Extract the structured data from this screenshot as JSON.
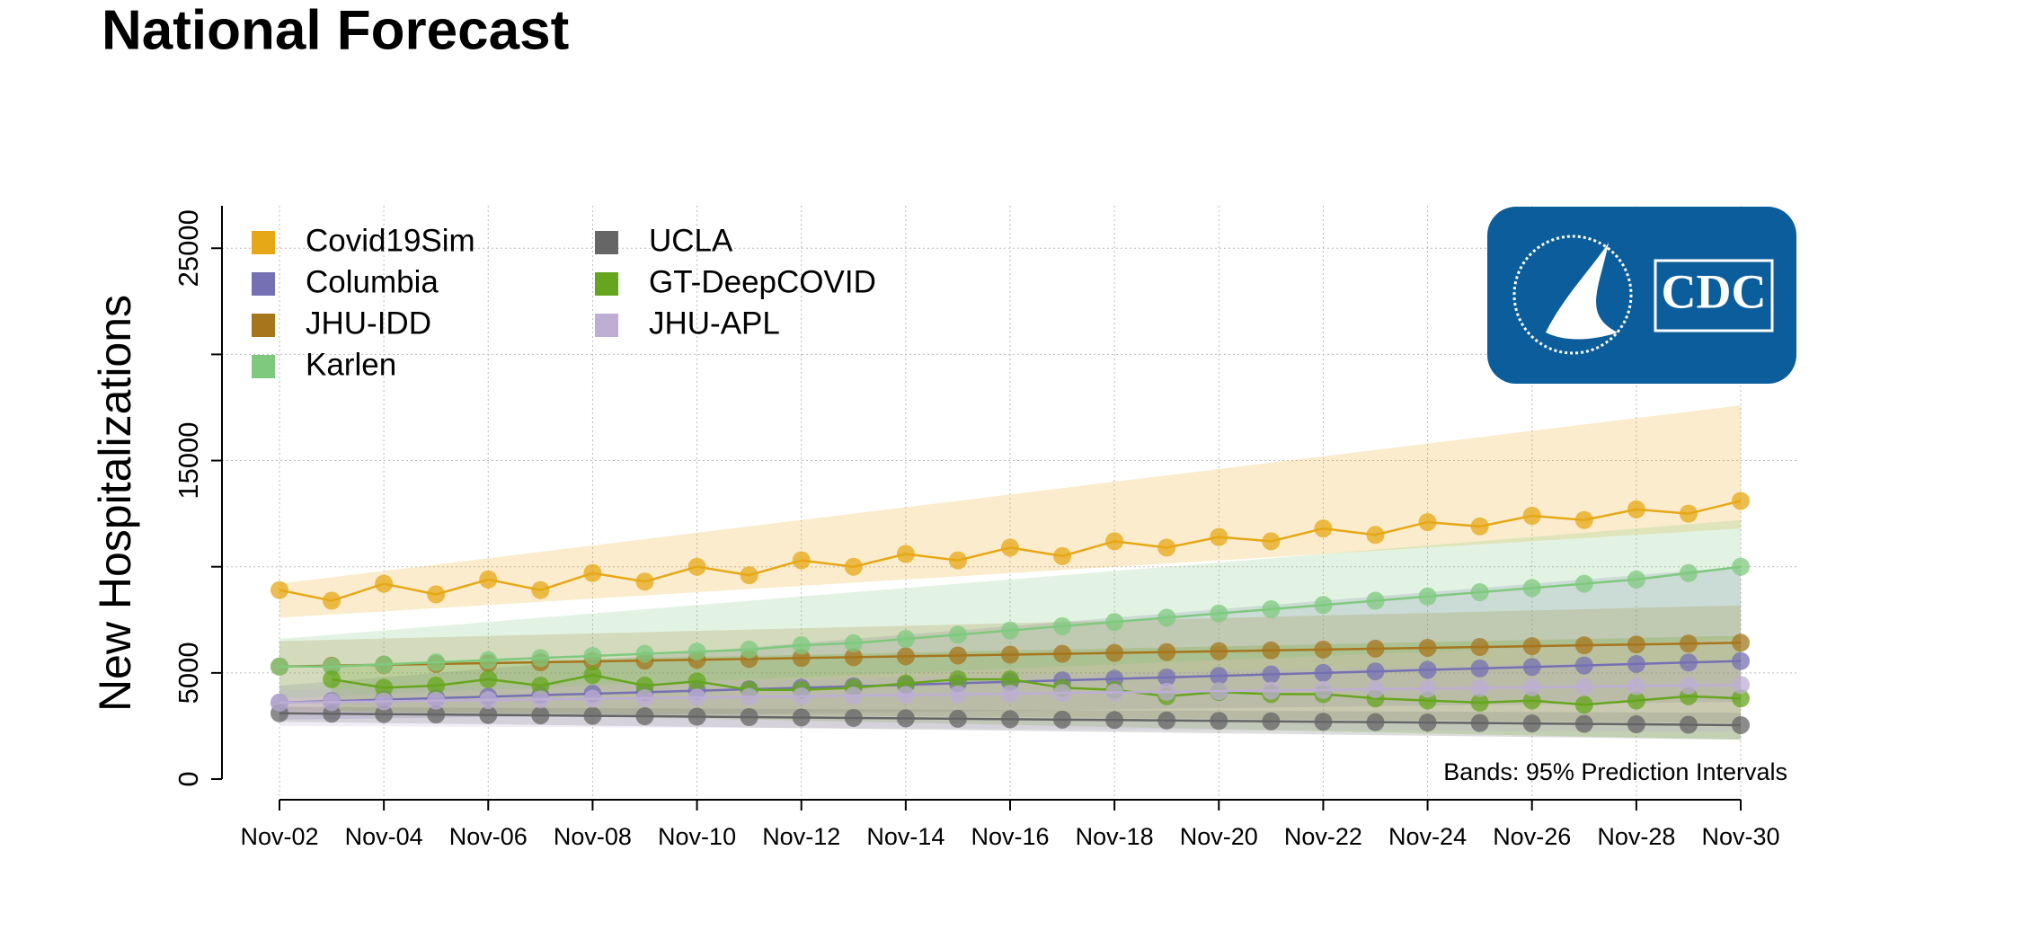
{
  "chart_data": {
    "type": "line",
    "title": "National Forecast",
    "y_label": "New Hospitalizations",
    "annotation": "Bands: 95% Prediction Intervals",
    "logo": "CDC",
    "categories": [
      "Nov-02",
      null,
      "Nov-04",
      null,
      "Nov-06",
      null,
      "Nov-08",
      null,
      "Nov-10",
      null,
      "Nov-12",
      null,
      "Nov-14",
      null,
      "Nov-16",
      null,
      "Nov-18",
      null,
      "Nov-20",
      null,
      "Nov-22",
      null,
      "Nov-24",
      null,
      "Nov-26",
      null,
      "Nov-28",
      null,
      "Nov-30"
    ],
    "ylim": [
      0,
      27000
    ],
    "yticks": [
      0,
      5000,
      15000,
      25000
    ],
    "yminor": [
      10000,
      20000
    ],
    "grid": true,
    "series": [
      {
        "name": "Covid19Sim",
        "color": "#E6A817",
        "values": [
          8900,
          8400,
          9200,
          8700,
          9400,
          8900,
          9700,
          9300,
          10000,
          9600,
          10300,
          10000,
          10600,
          10300,
          10900,
          10500,
          11200,
          10900,
          11400,
          11200,
          11800,
          11500,
          12100,
          11900,
          12400,
          12200,
          12700,
          12500,
          13100
        ],
        "lower": [
          7600,
          7750,
          7900,
          8050,
          8200,
          8350,
          8500,
          8650,
          8800,
          8950,
          9100,
          9250,
          9400,
          9550,
          9700,
          9850,
          10000,
          10150,
          10300,
          10450,
          10600,
          10750,
          10900,
          11050,
          11200,
          11350,
          11500,
          11650,
          11800
        ],
        "upper": [
          9200,
          9500,
          9800,
          10100,
          10400,
          10700,
          11000,
          11300,
          11600,
          11900,
          12200,
          12500,
          12800,
          13100,
          13400,
          13700,
          14000,
          14300,
          14600,
          14900,
          15200,
          15500,
          15800,
          16100,
          16400,
          16700,
          17000,
          17300,
          17600
        ]
      },
      {
        "name": "Columbia",
        "color": "#7570B3",
        "values": [
          3600,
          3670,
          3740,
          3810,
          3880,
          3950,
          4020,
          4090,
          4160,
          4230,
          4300,
          4370,
          4440,
          4510,
          4580,
          4650,
          4720,
          4790,
          4860,
          4930,
          5000,
          5070,
          5140,
          5210,
          5280,
          5350,
          5420,
          5490,
          5560
        ],
        "lower": [
          2800,
          2830,
          2860,
          2890,
          2920,
          2950,
          2980,
          3010,
          3040,
          3070,
          3100,
          3130,
          3160,
          3190,
          3220,
          3250,
          3280,
          3310,
          3340,
          3370,
          3400,
          3430,
          3460,
          3490,
          3520,
          3550,
          3580,
          3610,
          3640
        ],
        "upper": [
          4400,
          4600,
          4800,
          5000,
          5200,
          5400,
          5600,
          5800,
          6000,
          6200,
          6400,
          6600,
          6800,
          7000,
          7200,
          7400,
          7600,
          7800,
          8000,
          8200,
          8400,
          8600,
          8800,
          9000,
          9200,
          9400,
          9600,
          9800,
          10000
        ]
      },
      {
        "name": "JHU-IDD",
        "color": "#A6761D",
        "values": [
          5300,
          5340,
          5380,
          5420,
          5460,
          5500,
          5540,
          5580,
          5620,
          5660,
          5700,
          5740,
          5780,
          5820,
          5860,
          5900,
          5940,
          5980,
          6020,
          6060,
          6100,
          6140,
          6180,
          6220,
          6260,
          6300,
          6340,
          6380,
          6420
        ],
        "lower": [
          3200,
          3180,
          3160,
          3140,
          3120,
          3100,
          3080,
          3060,
          3040,
          3020,
          3000,
          2980,
          2960,
          2940,
          2920,
          2900,
          2880,
          2860,
          2840,
          2820,
          2800,
          2780,
          2760,
          2740,
          2720,
          2700,
          2680,
          2660,
          2640
        ],
        "upper": [
          6500,
          6560,
          6620,
          6680,
          6740,
          6800,
          6860,
          6920,
          6980,
          7040,
          7100,
          7160,
          7220,
          7280,
          7340,
          7400,
          7460,
          7520,
          7580,
          7640,
          7700,
          7760,
          7820,
          7880,
          7940,
          8000,
          8060,
          8120,
          8180
        ]
      },
      {
        "name": "Karlen",
        "color": "#7FC97F",
        "values": [
          5300,
          5300,
          5400,
          5500,
          5600,
          5700,
          5800,
          5900,
          6000,
          6100,
          6300,
          6400,
          6600,
          6800,
          7000,
          7200,
          7400,
          7600,
          7800,
          8000,
          8200,
          8400,
          8600,
          8800,
          9000,
          9200,
          9400,
          9700,
          10000
        ],
        "lower": [
          3800,
          3900,
          4000,
          4100,
          4200,
          4300,
          4400,
          4500,
          4600,
          4700,
          4800,
          4900,
          5000,
          5100,
          5200,
          5300,
          5400,
          5500,
          5600,
          5700,
          5800,
          5900,
          6000,
          6100,
          6200,
          6300,
          6400,
          6500,
          6600
        ],
        "upper": [
          6600,
          6800,
          7000,
          7200,
          7400,
          7600,
          7800,
          8000,
          8200,
          8400,
          8600,
          8800,
          9000,
          9200,
          9400,
          9600,
          9800,
          10000,
          10200,
          10400,
          10600,
          10800,
          11000,
          11200,
          11400,
          11600,
          11800,
          12000,
          12200
        ]
      },
      {
        "name": "UCLA",
        "color": "#666666",
        "values": [
          3100,
          3080,
          3060,
          3040,
          3020,
          3000,
          2980,
          2960,
          2940,
          2920,
          2900,
          2880,
          2860,
          2840,
          2820,
          2800,
          2780,
          2760,
          2740,
          2720,
          2700,
          2680,
          2660,
          2640,
          2620,
          2600,
          2580,
          2560,
          2540
        ],
        "lower": [
          2700,
          2670,
          2640,
          2610,
          2580,
          2550,
          2520,
          2490,
          2460,
          2430,
          2400,
          2370,
          2340,
          2310,
          2280,
          2250,
          2220,
          2190,
          2160,
          2130,
          2100,
          2070,
          2040,
          2010,
          1980,
          1950,
          1920,
          1890,
          1860
        ],
        "upper": [
          3400,
          3390,
          3380,
          3370,
          3360,
          3350,
          3340,
          3330,
          3320,
          3310,
          3300,
          3290,
          3280,
          3270,
          3260,
          3250,
          3240,
          3230,
          3220,
          3210,
          3200,
          3190,
          3180,
          3170,
          3160,
          3150,
          3140,
          3130,
          3120
        ]
      },
      {
        "name": "GT-DeepCOVID",
        "color": "#66A61E",
        "values": [
          null,
          4700,
          4300,
          4400,
          4700,
          4400,
          4900,
          4400,
          4600,
          4200,
          4200,
          4300,
          4500,
          4700,
          4700,
          4300,
          4200,
          3900,
          4100,
          4000,
          4000,
          3800,
          3700,
          3600,
          3700,
          3500,
          3700,
          3900,
          3800
        ],
        "lower": [
          null,
          3200,
          3150,
          3100,
          3050,
          3000,
          2950,
          2900,
          2850,
          2800,
          2750,
          2700,
          2650,
          2600,
          2550,
          2500,
          2450,
          2400,
          2350,
          2300,
          2250,
          2200,
          2150,
          2100,
          2050,
          2000,
          1950,
          1900,
          1850
        ],
        "upper": [
          null,
          5400,
          5450,
          5500,
          5550,
          5600,
          5650,
          5700,
          5750,
          5800,
          5850,
          5900,
          5950,
          6000,
          6050,
          6100,
          6150,
          6200,
          6250,
          6300,
          6350,
          6400,
          6450,
          6500,
          6550,
          6600,
          6650,
          6700,
          6750
        ]
      },
      {
        "name": "JHU-APL",
        "color": "#BEAED4",
        "values": [
          3600,
          3630,
          3660,
          3690,
          3720,
          3750,
          3780,
          3810,
          3840,
          3870,
          3900,
          3930,
          3960,
          3990,
          4020,
          4050,
          4080,
          4110,
          4140,
          4170,
          4200,
          4230,
          4260,
          4290,
          4320,
          4350,
          4380,
          4410,
          4440
        ],
        "lower": [
          2500,
          2490,
          2480,
          2470,
          2460,
          2450,
          2440,
          2430,
          2420,
          2410,
          2400,
          2390,
          2380,
          2370,
          2360,
          2350,
          2340,
          2330,
          2320,
          2310,
          2300,
          2290,
          2280,
          2270,
          2260,
          2250,
          2240,
          2230,
          2220
        ],
        "upper": [
          4200,
          4250,
          4300,
          4350,
          4400,
          4450,
          4500,
          4550,
          4600,
          4650,
          4700,
          4750,
          4800,
          4850,
          4900,
          4950,
          5000,
          5050,
          5100,
          5150,
          5200,
          5250,
          5300,
          5350,
          5400,
          5450,
          5500,
          5550,
          5600
        ]
      }
    ]
  }
}
